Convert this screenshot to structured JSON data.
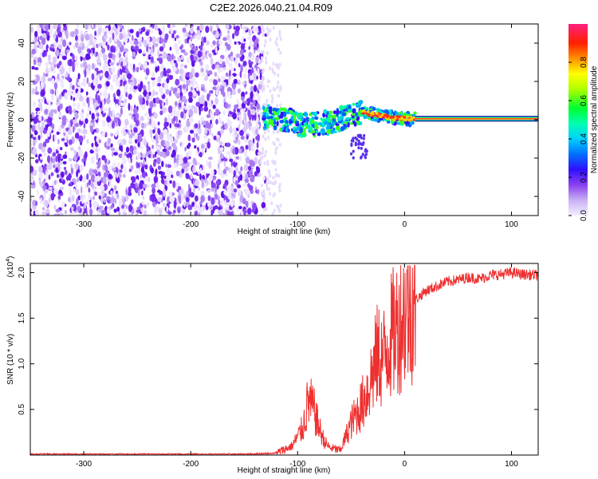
{
  "title": "C2E2.2026.040.21.04.R09",
  "colors": {
    "spectrum_dots": "#7a2ef0",
    "snr_line": "#ee3030",
    "colormap": [
      "#f0f0ff",
      "#d8c8f8",
      "#b090f0",
      "#7a2ef0",
      "#3010ff",
      "#0060ff",
      "#00c0ff",
      "#00ffcc",
      "#00ff40",
      "#b0ff00",
      "#ffff00",
      "#ffa000",
      "#ff3000",
      "#ff0060",
      "#ff30a0"
    ]
  },
  "chart_data": [
    {
      "type": "heatmap",
      "xlabel": "Height of straight line (km)",
      "ylabel": "Frequency (Hz)",
      "xlim": [
        -350,
        125
      ],
      "ylim": [
        -50,
        50
      ],
      "xticks": [
        -300,
        -200,
        -100,
        0,
        100
      ],
      "yticks": [
        -40,
        -20,
        0,
        20,
        40
      ],
      "colorbar": {
        "label": "Normalized spectral amplitude",
        "range": [
          0,
          1
        ],
        "ticks": [
          "0.0",
          "0.2",
          "0.4",
          "0.6",
          "0.8"
        ],
        "tick_values": [
          0,
          0.2,
          0.4,
          0.6,
          0.8
        ]
      },
      "features": {
        "noise_region_x": [
          -350,
          -135
        ],
        "signal_track": [
          [
            -130,
            2
          ],
          [
            -110,
            0
          ],
          [
            -95,
            -3
          ],
          [
            -80,
            -2
          ],
          [
            -65,
            -1
          ],
          [
            -50,
            3
          ],
          [
            -40,
            4
          ],
          [
            -30,
            3
          ],
          [
            -20,
            2
          ],
          [
            -10,
            1
          ],
          [
            0,
            0.5
          ],
          [
            10,
            0.5
          ],
          [
            125,
            0.5
          ]
        ],
        "steady_line_x": [
          10,
          125
        ],
        "steady_line_y": 0.5
      }
    },
    {
      "type": "line",
      "xlabel": "Height of straight line (km)",
      "ylabel": "SNR (10 * v/v)",
      "y_multiplier": "(x10",
      "y_multiplier_exp": "4",
      "y_multiplier_close": ")",
      "xlim": [
        -350,
        125
      ],
      "ylim": [
        0,
        2.1
      ],
      "xticks": [
        -300,
        -200,
        -100,
        0,
        100
      ],
      "yticks": [
        "0.5",
        "1.0",
        "1.5",
        "2.0"
      ],
      "ytick_values": [
        0.5,
        1.0,
        1.5,
        2.0
      ],
      "series": [
        {
          "x": [
            -350,
            -300,
            -250,
            -200,
            -150,
            -120,
            -105,
            -95,
            -90,
            -85,
            -80,
            -75,
            -70,
            -60,
            -50,
            -40,
            -35,
            -30,
            -25,
            -20,
            -15,
            -10,
            -5,
            0,
            10,
            20,
            30,
            40,
            50,
            60,
            70,
            80,
            90,
            100,
            110,
            125
          ],
          "y": [
            0.01,
            0.01,
            0.01,
            0.01,
            0.01,
            0.02,
            0.1,
            0.3,
            0.6,
            0.5,
            0.3,
            0.15,
            0.08,
            0.05,
            0.35,
            0.55,
            0.7,
            0.9,
            1.1,
            1.05,
            1.25,
            1.35,
            1.45,
            1.55,
            1.7,
            1.8,
            1.85,
            1.9,
            1.92,
            1.95,
            1.93,
            1.97,
            1.98,
            2.0,
            1.98,
            1.97
          ]
        }
      ]
    }
  ]
}
